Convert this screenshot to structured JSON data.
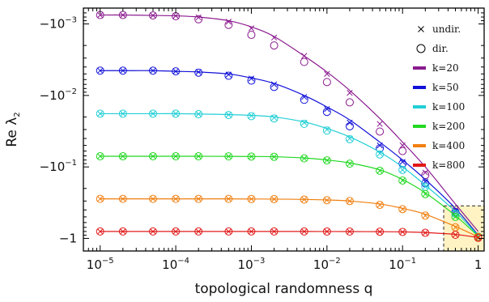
{
  "chart_data": {
    "type": "line",
    "xlabel": "topological randomness q",
    "ylabel": "Re λ",
    "ylabel_sub": "2",
    "x_scale": "log",
    "y_scale": "log (negative values)",
    "xlim": [
      6e-06,
      1.2
    ],
    "ylim_abs": [
      0.0006,
      1.5
    ],
    "x_ticks": [
      {
        "value": 1e-05,
        "base": "10",
        "exp": "−5"
      },
      {
        "value": 0.0001,
        "base": "10",
        "exp": "−4"
      },
      {
        "value": 0.001,
        "base": "10",
        "exp": "−3"
      },
      {
        "value": 0.01,
        "base": "10",
        "exp": "−2"
      },
      {
        "value": 0.1,
        "base": "10",
        "exp": "−1"
      },
      {
        "value": 1,
        "base": "1",
        "exp": ""
      }
    ],
    "y_ticks": [
      {
        "value": -0.001,
        "base": "−10",
        "exp": "−3"
      },
      {
        "value": -0.01,
        "base": "−10",
        "exp": "−2"
      },
      {
        "value": -0.1,
        "base": "−10",
        "exp": "−1"
      },
      {
        "value": -1,
        "base": "−1",
        "exp": ""
      }
    ],
    "x_points": [
      1e-05,
      2e-05,
      5e-05,
      0.0001,
      0.0002,
      0.0005,
      0.001,
      0.002,
      0.005,
      0.01,
      0.02,
      0.05,
      0.1,
      0.2,
      0.5,
      1
    ],
    "legend": {
      "markers": [
        {
          "label": "undir.",
          "symbol": "×"
        },
        {
          "label": "dir.",
          "symbol": "○"
        }
      ]
    },
    "series": [
      {
        "name": "k=20",
        "color": "#8b1a8f",
        "line": [
          -0.00075,
          -0.00075,
          -0.00076,
          -0.00077,
          -0.0008,
          -0.0009,
          -0.0011,
          -0.0015,
          -0.0028,
          -0.0047,
          -0.0085,
          -0.021,
          -0.045,
          -0.1,
          -0.33,
          -0.8
        ],
        "undir": [
          -0.00075,
          -0.00075,
          -0.00076,
          -0.00077,
          -0.00081,
          -0.00093,
          -0.00115,
          -0.00155,
          -0.0028,
          -0.005,
          -0.0092,
          -0.025,
          -0.05,
          -0.12,
          -0.4,
          -0.95
        ],
        "dir": [
          -0.00075,
          -0.00075,
          -0.00076,
          -0.00078,
          -0.00086,
          -0.00103,
          -0.00142,
          -0.002,
          -0.0034,
          -0.0065,
          -0.0125,
          -0.032,
          -0.06,
          -0.13,
          -0.43,
          -0.95
        ]
      },
      {
        "name": "k=50",
        "color": "#1010d8",
        "line": [
          -0.0045,
          -0.0045,
          -0.0045,
          -0.0046,
          -0.0047,
          -0.005,
          -0.0057,
          -0.0068,
          -0.01,
          -0.0145,
          -0.022,
          -0.045,
          -0.08,
          -0.15,
          -0.38,
          -0.9
        ],
        "undir": [
          -0.0045,
          -0.0045,
          -0.0045,
          -0.0046,
          -0.0047,
          -0.0051,
          -0.0058,
          -0.007,
          -0.0105,
          -0.0155,
          -0.024,
          -0.05,
          -0.085,
          -0.16,
          -0.42,
          -0.95
        ],
        "dir": [
          -0.0045,
          -0.0045,
          -0.0045,
          -0.0046,
          -0.0048,
          -0.0053,
          -0.0062,
          -0.0076,
          -0.0115,
          -0.017,
          -0.027,
          -0.055,
          -0.09,
          -0.17,
          -0.43,
          -0.95
        ]
      },
      {
        "name": "k=100",
        "color": "#22cfd6",
        "line": [
          -0.018,
          -0.018,
          -0.018,
          -0.018,
          -0.0182,
          -0.0185,
          -0.019,
          -0.02,
          -0.0235,
          -0.029,
          -0.038,
          -0.062,
          -0.1,
          -0.18,
          -0.42,
          -0.92
        ],
        "undir": [
          -0.018,
          -0.018,
          -0.018,
          -0.018,
          -0.0182,
          -0.0186,
          -0.0192,
          -0.0205,
          -0.024,
          -0.03,
          -0.04,
          -0.065,
          -0.11,
          -0.19,
          -0.45,
          -0.95
        ],
        "dir": [
          -0.018,
          -0.018,
          -0.018,
          -0.018,
          -0.0183,
          -0.0188,
          -0.0195,
          -0.021,
          -0.025,
          -0.031,
          -0.041,
          -0.067,
          -0.11,
          -0.19,
          -0.45,
          -0.95
        ]
      },
      {
        "name": "k=200",
        "color": "#22d822",
        "line": [
          -0.071,
          -0.071,
          -0.071,
          -0.071,
          -0.071,
          -0.0712,
          -0.0715,
          -0.072,
          -0.075,
          -0.08,
          -0.088,
          -0.11,
          -0.15,
          -0.23,
          -0.48,
          -0.93
        ],
        "undir": [
          -0.071,
          -0.071,
          -0.071,
          -0.071,
          -0.071,
          -0.0712,
          -0.0716,
          -0.0722,
          -0.076,
          -0.081,
          -0.09,
          -0.113,
          -0.155,
          -0.24,
          -0.5,
          -0.95
        ],
        "dir": [
          -0.071,
          -0.071,
          -0.071,
          -0.071,
          -0.071,
          -0.0712,
          -0.0716,
          -0.0722,
          -0.076,
          -0.081,
          -0.09,
          -0.113,
          -0.155,
          -0.24,
          -0.5,
          -0.95
        ]
      },
      {
        "name": "k=400",
        "color": "#f07f10",
        "line": [
          -0.28,
          -0.28,
          -0.28,
          -0.28,
          -0.28,
          -0.28,
          -0.281,
          -0.282,
          -0.285,
          -0.29,
          -0.3,
          -0.33,
          -0.38,
          -0.46,
          -0.68,
          -0.95
        ],
        "undir": [
          -0.28,
          -0.28,
          -0.28,
          -0.28,
          -0.28,
          -0.28,
          -0.281,
          -0.282,
          -0.286,
          -0.292,
          -0.3,
          -0.34,
          -0.39,
          -0.48,
          -0.7,
          -0.96
        ],
        "dir": [
          -0.28,
          -0.28,
          -0.28,
          -0.28,
          -0.28,
          -0.28,
          -0.281,
          -0.282,
          -0.286,
          -0.292,
          -0.3,
          -0.34,
          -0.39,
          -0.48,
          -0.7,
          -0.96
        ]
      },
      {
        "name": "k=800",
        "color": "#e01818",
        "line": [
          -0.8,
          -0.8,
          -0.8,
          -0.8,
          -0.8,
          -0.8,
          -0.8,
          -0.8,
          -0.8,
          -0.801,
          -0.802,
          -0.805,
          -0.81,
          -0.83,
          -0.88,
          -0.97
        ],
        "undir": [
          -0.8,
          -0.8,
          -0.8,
          -0.8,
          -0.8,
          -0.8,
          -0.8,
          -0.8,
          -0.8,
          -0.801,
          -0.802,
          -0.806,
          -0.812,
          -0.835,
          -0.89,
          -0.98
        ],
        "dir": [
          -0.8,
          -0.8,
          -0.8,
          -0.8,
          -0.8,
          -0.8,
          -0.8,
          -0.8,
          -0.8,
          -0.801,
          -0.802,
          -0.806,
          -0.812,
          -0.835,
          -0.89,
          -0.98
        ]
      }
    ],
    "inset_highlight": {
      "x_range": [
        0.35,
        1.2
      ],
      "y_range": [
        -0.35,
        -1.5
      ],
      "color": "#fff3c4"
    },
    "grid": false,
    "legend_placement": "top-right"
  }
}
